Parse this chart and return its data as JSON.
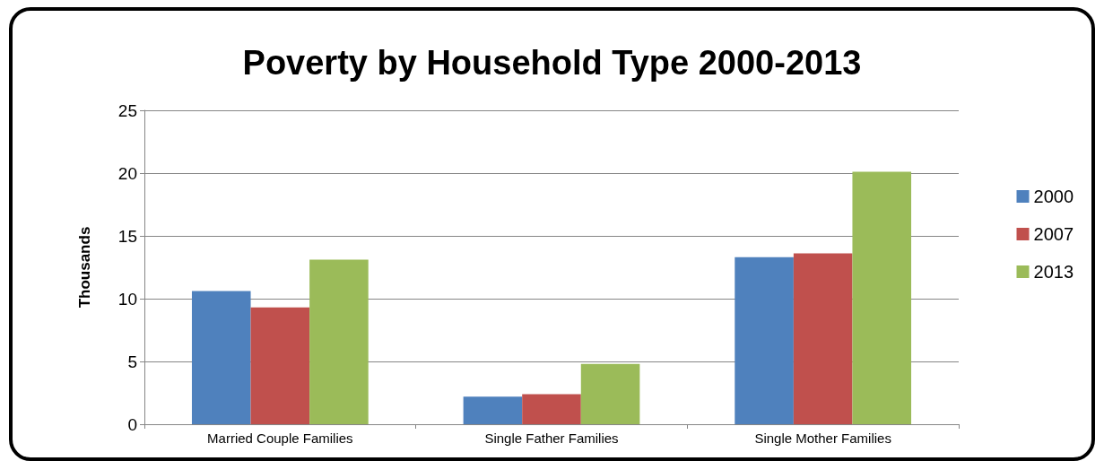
{
  "chart_data": {
    "type": "bar",
    "title": "Poverty by Household Type 2000-2013",
    "ylabel": "Thousands",
    "categories": [
      "Married Couple Families",
      "Single Father Families",
      "Single Mother Families"
    ],
    "series": [
      {
        "name": "2000",
        "color": "#4f81bd",
        "values": [
          10.6,
          2.2,
          13.3
        ]
      },
      {
        "name": "2007",
        "color": "#c0504d",
        "values": [
          9.3,
          2.4,
          13.6
        ]
      },
      {
        "name": "2013",
        "color": "#9bbb59",
        "values": [
          13.1,
          4.8,
          20.1
        ]
      }
    ],
    "ylim": [
      0,
      25
    ],
    "yticks": [
      0,
      5,
      10,
      15,
      20,
      25
    ],
    "grid": "y",
    "legend": "right"
  }
}
